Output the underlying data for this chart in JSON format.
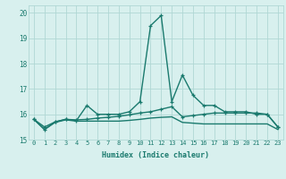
{
  "xlabel": "Humidex (Indice chaleur)",
  "xlim": [
    -0.5,
    23.5
  ],
  "ylim": [
    15.0,
    20.3
  ],
  "x": [
    0,
    1,
    2,
    3,
    4,
    5,
    6,
    7,
    8,
    9,
    10,
    11,
    12,
    13,
    14,
    15,
    16,
    17,
    18,
    19,
    20,
    21,
    22,
    23
  ],
  "line1": [
    15.8,
    15.4,
    15.7,
    15.8,
    15.75,
    16.35,
    16.0,
    16.0,
    16.0,
    16.1,
    16.5,
    19.5,
    19.9,
    16.5,
    17.55,
    16.75,
    16.35,
    16.35,
    16.1,
    16.1,
    16.1,
    16.0,
    16.0,
    15.5
  ],
  "line2": [
    15.8,
    15.5,
    15.7,
    15.8,
    15.78,
    15.8,
    15.85,
    15.88,
    15.92,
    15.98,
    16.05,
    16.1,
    16.2,
    16.3,
    15.9,
    15.95,
    16.0,
    16.05,
    16.05,
    16.05,
    16.05,
    16.05,
    16.0,
    15.5
  ],
  "line3": [
    15.8,
    15.4,
    15.68,
    15.78,
    15.73,
    15.73,
    15.73,
    15.73,
    15.73,
    15.76,
    15.8,
    15.85,
    15.88,
    15.9,
    15.68,
    15.65,
    15.62,
    15.62,
    15.62,
    15.62,
    15.62,
    15.62,
    15.62,
    15.4
  ],
  "line_color": "#1a7a6e",
  "bg_color": "#d8f0ee",
  "grid_color": "#b0d8d4",
  "tick_color": "#1a7a6e",
  "label_color": "#1a7a6e",
  "xticks": [
    0,
    1,
    2,
    3,
    4,
    5,
    6,
    7,
    8,
    9,
    10,
    11,
    12,
    13,
    14,
    15,
    16,
    17,
    18,
    19,
    20,
    21,
    22,
    23
  ],
  "yticks": [
    15,
    16,
    17,
    18,
    19,
    20
  ],
  "line_width": 1.0,
  "marker_size": 3.5
}
